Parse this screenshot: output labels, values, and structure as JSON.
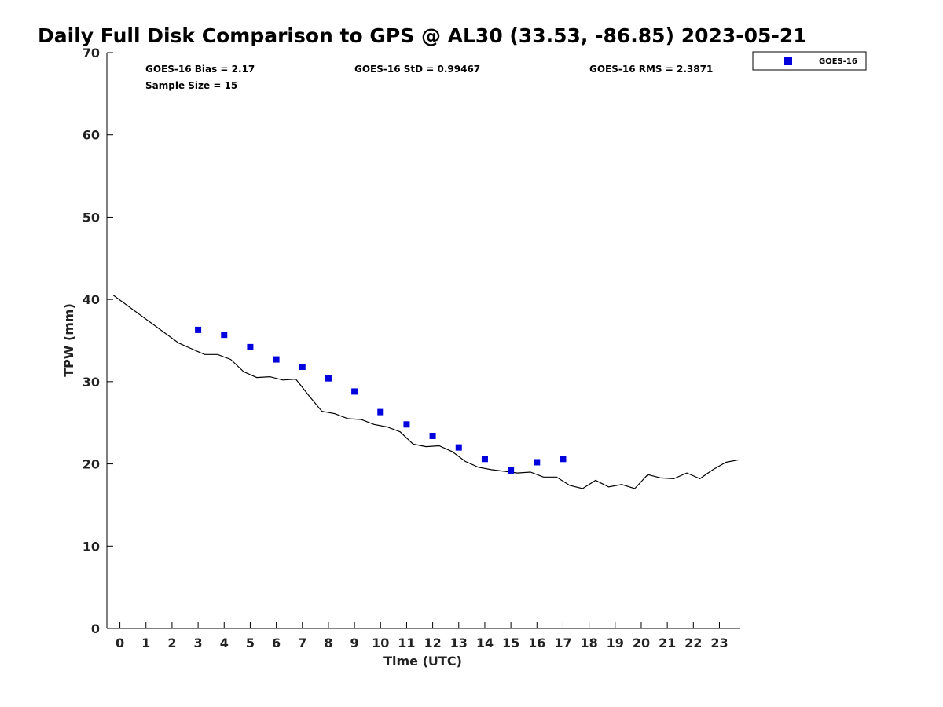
{
  "title": "Daily Full Disk Comparison to GPS @ AL30 (33.53, -86.85) 2023-05-21",
  "stats": {
    "bias": "GOES-16 Bias = 2.17",
    "sample_size": "Sample Size = 15",
    "std": "GOES-16 StD = 0.99467",
    "rms": "GOES-16 RMS = 2.3871"
  },
  "legend": {
    "label": "GOES-16",
    "position": "top-right, outside plot"
  },
  "colors": {
    "goes16": "#0000dd",
    "gps": "#000000",
    "axis": "#000000"
  },
  "chart_data": {
    "type": "scatter",
    "title": "Daily Full Disk Comparison to GPS @ AL30 (33.53, -86.85) 2023-05-21",
    "xlabel": "Time (UTC)",
    "ylabel": "TPW (mm)",
    "xlim": [
      -0.5,
      23.8
    ],
    "ylim": [
      0,
      70
    ],
    "x_ticks": [
      0,
      1,
      2,
      3,
      4,
      5,
      6,
      7,
      8,
      9,
      10,
      11,
      12,
      13,
      14,
      15,
      16,
      17,
      18,
      19,
      20,
      21,
      22,
      23
    ],
    "y_ticks": [
      0,
      10,
      20,
      30,
      40,
      50,
      60,
      70
    ],
    "grid": false,
    "legend_position": "top-right",
    "series": [
      {
        "name": "GOES-16",
        "marker": "square",
        "color": "#0000dd",
        "x": [
          3,
          4,
          5,
          6,
          7,
          8,
          9,
          10,
          11,
          12,
          13,
          14,
          15,
          16,
          17
        ],
        "y": [
          36.3,
          35.7,
          34.2,
          32.7,
          31.8,
          30.4,
          28.8,
          26.3,
          24.8,
          23.4,
          22.0,
          20.6,
          19.2,
          20.2,
          20.6
        ]
      },
      {
        "color": "#000000",
        "style": "line",
        "x": [
          -0.25,
          2.25,
          2.75,
          3.25,
          3.75,
          4.25,
          4.75,
          5.25,
          5.75,
          6.25,
          6.75,
          7.25,
          7.75,
          8.25,
          8.75,
          9.25,
          9.75,
          10.25,
          10.75,
          11.25,
          11.75,
          12.25,
          12.75,
          13.25,
          13.75,
          14.25,
          14.75,
          15.25,
          15.75,
          16.25,
          16.75,
          17.25,
          17.75,
          18.25,
          18.75,
          19.25,
          19.75,
          20.25,
          20.75,
          21.25,
          21.75,
          22.25,
          22.75,
          23.25,
          23.75
        ],
        "y": [
          40.5,
          34.7,
          34.0,
          33.3,
          33.3,
          32.7,
          31.2,
          30.5,
          30.6,
          30.2,
          30.3,
          28.3,
          26.4,
          26.1,
          25.5,
          25.4,
          24.8,
          24.5,
          23.9,
          22.4,
          22.1,
          22.2,
          21.5,
          20.3,
          19.6,
          19.3,
          19.1,
          18.9,
          19.0,
          18.4,
          18.4,
          17.4,
          17.0,
          18.0,
          17.2,
          17.5,
          17.0,
          18.7,
          18.3,
          18.2,
          18.9,
          18.2,
          19.3,
          20.2,
          20.5
        ]
      }
    ]
  }
}
